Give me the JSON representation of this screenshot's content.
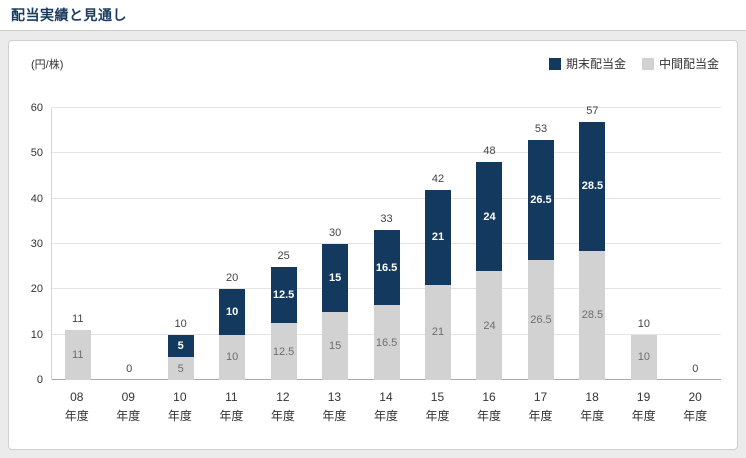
{
  "page_title": "配当実績と見通し",
  "chart": {
    "unit_label": "(円/株)"
  },
  "chart_data": {
    "type": "bar",
    "stacked": true,
    "title": "配当実績と見通し",
    "ylabel": "(円/株)",
    "ylim": [
      0,
      60
    ],
    "y_ticks": [
      0,
      10,
      20,
      30,
      40,
      50,
      60
    ],
    "grid": true,
    "legend_position": "top-right",
    "categories": [
      "08年度",
      "09年度",
      "10年度",
      "11年度",
      "12年度",
      "13年度",
      "14年度",
      "15年度",
      "16年度",
      "17年度",
      "18年度",
      "19年度",
      "20年度"
    ],
    "series": [
      {
        "name": "中間配当金",
        "color": "#d2d2d2",
        "label_color": "#6e6e6e",
        "label_bold": false,
        "values": [
          11,
          0,
          5,
          10,
          12.5,
          15,
          16.5,
          21,
          24,
          26.5,
          28.5,
          10,
          0
        ]
      },
      {
        "name": "期末配当金",
        "color": "#14395e",
        "label_color": "#ffffff",
        "label_bold": true,
        "values": [
          0,
          0,
          5,
          10,
          12.5,
          15,
          16.5,
          21,
          24,
          26.5,
          28.5,
          0,
          0
        ]
      }
    ],
    "totals": [
      11,
      0,
      10,
      20,
      25,
      30,
      33,
      42,
      48,
      53,
      57,
      10,
      0
    ]
  }
}
